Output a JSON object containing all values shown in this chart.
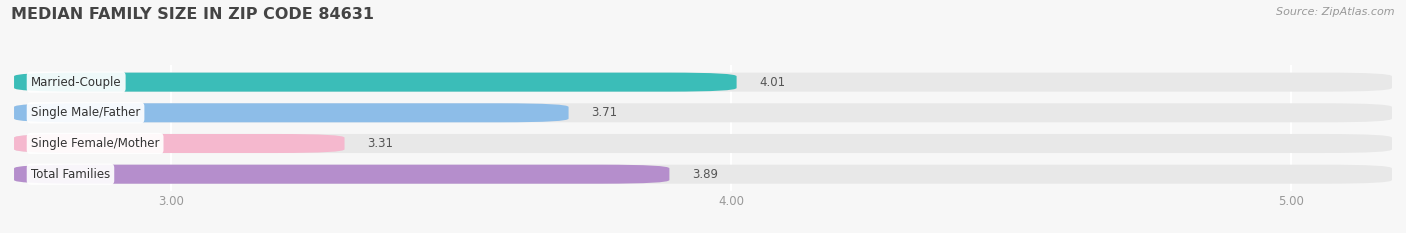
{
  "title": "MEDIAN FAMILY SIZE IN ZIP CODE 84631",
  "source": "Source: ZipAtlas.com",
  "categories": [
    "Married-Couple",
    "Single Male/Father",
    "Single Female/Mother",
    "Total Families"
  ],
  "values": [
    4.01,
    3.71,
    3.31,
    3.89
  ],
  "bar_colors": [
    "#3bbdb8",
    "#8dbde8",
    "#f5b8ce",
    "#b58ecc"
  ],
  "bar_bg_color": "#e8e8e8",
  "label_bg_color": "#ffffff",
  "xlim_left": 2.72,
  "xlim_right": 5.18,
  "xticks": [
    3.0,
    4.0,
    5.0
  ],
  "xtick_labels": [
    "3.00",
    "4.00",
    "5.00"
  ],
  "title_fontsize": 11.5,
  "label_fontsize": 8.5,
  "value_fontsize": 8.5,
  "source_fontsize": 8.0,
  "bar_height": 0.62,
  "background_color": "#f7f7f7",
  "grid_color": "#ffffff",
  "text_color": "#555555",
  "title_color": "#444444"
}
